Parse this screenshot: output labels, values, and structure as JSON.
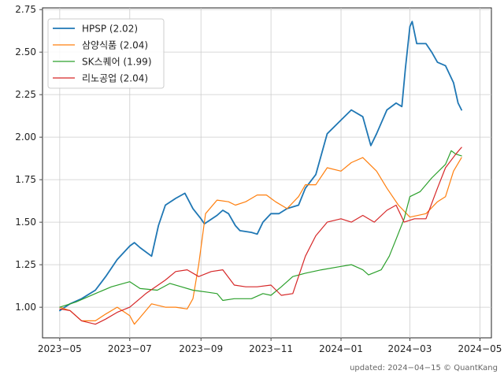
{
  "chart_data": {
    "type": "line",
    "title": "",
    "xlabel": "",
    "ylabel": "",
    "ylim": [
      0.82,
      2.76
    ],
    "x_range": [
      "2023-04-16",
      "2024-05-11"
    ],
    "y_ticks": [
      1.0,
      1.25,
      1.5,
      1.75,
      2.0,
      2.25,
      2.5,
      2.75
    ],
    "y_tick_labels": [
      "1.00",
      "1.25",
      "1.50",
      "1.75",
      "2.00",
      "2.25",
      "2.50",
      "2.75"
    ],
    "x_ticks": [
      "2023-05-01",
      "2023-07-01",
      "2023-09-01",
      "2023-11-01",
      "2024-01-01",
      "2024-03-01",
      "2024-05-01"
    ],
    "x_tick_labels": [
      "2023−05",
      "2023−07",
      "2023−09",
      "2023−11",
      "2024−01",
      "2024−03",
      "2024−05"
    ],
    "grid": true,
    "legend_position": "top-left",
    "series": [
      {
        "name": "HPSP (2.02)",
        "color": "#1f77b4",
        "points": [
          [
            "2023-05-01",
            0.98
          ],
          [
            "2023-05-10",
            1.02
          ],
          [
            "2023-05-20",
            1.05
          ],
          [
            "2023-06-01",
            1.1
          ],
          [
            "2023-06-10",
            1.18
          ],
          [
            "2023-06-20",
            1.28
          ],
          [
            "2023-07-01",
            1.36
          ],
          [
            "2023-07-05",
            1.38
          ],
          [
            "2023-07-10",
            1.35
          ],
          [
            "2023-07-20",
            1.3
          ],
          [
            "2023-07-26",
            1.48
          ],
          [
            "2023-08-01",
            1.6
          ],
          [
            "2023-08-10",
            1.64
          ],
          [
            "2023-08-18",
            1.67
          ],
          [
            "2023-08-25",
            1.58
          ],
          [
            "2023-09-01",
            1.52
          ],
          [
            "2023-09-04",
            1.49
          ],
          [
            "2023-09-15",
            1.54
          ],
          [
            "2023-09-20",
            1.57
          ],
          [
            "2023-09-25",
            1.55
          ],
          [
            "2023-10-01",
            1.48
          ],
          [
            "2023-10-05",
            1.45
          ],
          [
            "2023-10-15",
            1.44
          ],
          [
            "2023-10-20",
            1.43
          ],
          [
            "2023-10-25",
            1.5
          ],
          [
            "2023-11-01",
            1.55
          ],
          [
            "2023-11-08",
            1.55
          ],
          [
            "2023-11-15",
            1.58
          ],
          [
            "2023-11-25",
            1.6
          ],
          [
            "2023-12-01",
            1.7
          ],
          [
            "2023-12-10",
            1.78
          ],
          [
            "2023-12-20",
            2.02
          ],
          [
            "2024-01-01",
            2.1
          ],
          [
            "2024-01-10",
            2.16
          ],
          [
            "2024-01-20",
            2.12
          ],
          [
            "2024-01-27",
            1.95
          ],
          [
            "2024-02-01",
            2.02
          ],
          [
            "2024-02-10",
            2.16
          ],
          [
            "2024-02-18",
            2.2
          ],
          [
            "2024-02-23",
            2.18
          ],
          [
            "2024-02-26",
            2.4
          ],
          [
            "2024-03-01",
            2.65
          ],
          [
            "2024-03-03",
            2.68
          ],
          [
            "2024-03-07",
            2.55
          ],
          [
            "2024-03-15",
            2.55
          ],
          [
            "2024-03-20",
            2.5
          ],
          [
            "2024-03-25",
            2.44
          ],
          [
            "2024-04-01",
            2.42
          ],
          [
            "2024-04-08",
            2.32
          ],
          [
            "2024-04-12",
            2.2
          ],
          [
            "2024-04-15",
            2.16
          ]
        ]
      },
      {
        "name": "삼양식품 (2.04)",
        "color": "#ff7f0e",
        "points": [
          [
            "2023-05-01",
            1.0
          ],
          [
            "2023-05-10",
            0.98
          ],
          [
            "2023-05-20",
            0.92
          ],
          [
            "2023-06-01",
            0.92
          ],
          [
            "2023-06-10",
            0.96
          ],
          [
            "2023-06-20",
            1.0
          ],
          [
            "2023-07-01",
            0.95
          ],
          [
            "2023-07-05",
            0.9
          ],
          [
            "2023-07-10",
            0.94
          ],
          [
            "2023-07-20",
            1.02
          ],
          [
            "2023-08-01",
            1.0
          ],
          [
            "2023-08-10",
            1.0
          ],
          [
            "2023-08-20",
            0.99
          ],
          [
            "2023-08-25",
            1.05
          ],
          [
            "2023-08-30",
            1.25
          ],
          [
            "2023-09-05",
            1.55
          ],
          [
            "2023-09-15",
            1.63
          ],
          [
            "2023-09-25",
            1.62
          ],
          [
            "2023-10-01",
            1.6
          ],
          [
            "2023-10-10",
            1.62
          ],
          [
            "2023-10-20",
            1.66
          ],
          [
            "2023-10-28",
            1.66
          ],
          [
            "2023-11-05",
            1.62
          ],
          [
            "2023-11-15",
            1.58
          ],
          [
            "2023-11-25",
            1.65
          ],
          [
            "2023-12-01",
            1.72
          ],
          [
            "2023-12-10",
            1.72
          ],
          [
            "2023-12-20",
            1.82
          ],
          [
            "2024-01-01",
            1.8
          ],
          [
            "2024-01-10",
            1.85
          ],
          [
            "2024-01-20",
            1.88
          ],
          [
            "2024-02-01",
            1.8
          ],
          [
            "2024-02-10",
            1.7
          ],
          [
            "2024-02-20",
            1.6
          ],
          [
            "2024-03-01",
            1.53
          ],
          [
            "2024-03-15",
            1.55
          ],
          [
            "2024-03-25",
            1.62
          ],
          [
            "2024-04-01",
            1.65
          ],
          [
            "2024-04-08",
            1.8
          ],
          [
            "2024-04-15",
            1.88
          ]
        ]
      },
      {
        "name": "SK스퀘어 (1.99)",
        "color": "#2ca02c",
        "points": [
          [
            "2023-05-01",
            1.0
          ],
          [
            "2023-05-15",
            1.03
          ],
          [
            "2023-06-01",
            1.08
          ],
          [
            "2023-06-15",
            1.12
          ],
          [
            "2023-07-01",
            1.15
          ],
          [
            "2023-07-10",
            1.11
          ],
          [
            "2023-07-25",
            1.1
          ],
          [
            "2023-08-05",
            1.14
          ],
          [
            "2023-08-15",
            1.12
          ],
          [
            "2023-08-25",
            1.1
          ],
          [
            "2023-09-05",
            1.09
          ],
          [
            "2023-09-15",
            1.08
          ],
          [
            "2023-09-20",
            1.04
          ],
          [
            "2023-09-30",
            1.05
          ],
          [
            "2023-10-15",
            1.05
          ],
          [
            "2023-10-25",
            1.08
          ],
          [
            "2023-11-01",
            1.07
          ],
          [
            "2023-11-10",
            1.12
          ],
          [
            "2023-11-20",
            1.18
          ],
          [
            "2023-12-01",
            1.2
          ],
          [
            "2023-12-15",
            1.22
          ],
          [
            "2024-01-01",
            1.24
          ],
          [
            "2024-01-10",
            1.25
          ],
          [
            "2024-01-20",
            1.22
          ],
          [
            "2024-01-25",
            1.19
          ],
          [
            "2024-02-05",
            1.22
          ],
          [
            "2024-02-12",
            1.3
          ],
          [
            "2024-02-18",
            1.4
          ],
          [
            "2024-02-25",
            1.52
          ],
          [
            "2024-03-01",
            1.65
          ],
          [
            "2024-03-10",
            1.68
          ],
          [
            "2024-03-20",
            1.76
          ],
          [
            "2024-04-01",
            1.84
          ],
          [
            "2024-04-06",
            1.92
          ],
          [
            "2024-04-10",
            1.9
          ],
          [
            "2024-04-15",
            1.89
          ]
        ]
      },
      {
        "name": "리노공업 (2.04)",
        "color": "#d62728",
        "points": [
          [
            "2023-05-01",
            0.99
          ],
          [
            "2023-05-10",
            0.98
          ],
          [
            "2023-05-20",
            0.92
          ],
          [
            "2023-06-01",
            0.9
          ],
          [
            "2023-06-10",
            0.93
          ],
          [
            "2023-06-20",
            0.97
          ],
          [
            "2023-07-01",
            1.0
          ],
          [
            "2023-07-15",
            1.08
          ],
          [
            "2023-08-01",
            1.16
          ],
          [
            "2023-08-10",
            1.21
          ],
          [
            "2023-08-20",
            1.22
          ],
          [
            "2023-08-30",
            1.18
          ],
          [
            "2023-09-10",
            1.21
          ],
          [
            "2023-09-20",
            1.22
          ],
          [
            "2023-09-30",
            1.13
          ],
          [
            "2023-10-10",
            1.12
          ],
          [
            "2023-10-20",
            1.12
          ],
          [
            "2023-11-01",
            1.13
          ],
          [
            "2023-11-10",
            1.07
          ],
          [
            "2023-11-20",
            1.08
          ],
          [
            "2023-12-01",
            1.3
          ],
          [
            "2023-12-10",
            1.42
          ],
          [
            "2023-12-20",
            1.5
          ],
          [
            "2024-01-01",
            1.52
          ],
          [
            "2024-01-10",
            1.5
          ],
          [
            "2024-01-20",
            1.54
          ],
          [
            "2024-01-30",
            1.5
          ],
          [
            "2024-02-10",
            1.57
          ],
          [
            "2024-02-18",
            1.6
          ],
          [
            "2024-02-25",
            1.5
          ],
          [
            "2024-03-05",
            1.52
          ],
          [
            "2024-03-15",
            1.52
          ],
          [
            "2024-03-25",
            1.7
          ],
          [
            "2024-04-01",
            1.82
          ],
          [
            "2024-04-10",
            1.9
          ],
          [
            "2024-04-15",
            1.94
          ]
        ]
      }
    ]
  },
  "footer": {
    "updated_text": "updated: 2024−04−15 © QuantKang"
  }
}
